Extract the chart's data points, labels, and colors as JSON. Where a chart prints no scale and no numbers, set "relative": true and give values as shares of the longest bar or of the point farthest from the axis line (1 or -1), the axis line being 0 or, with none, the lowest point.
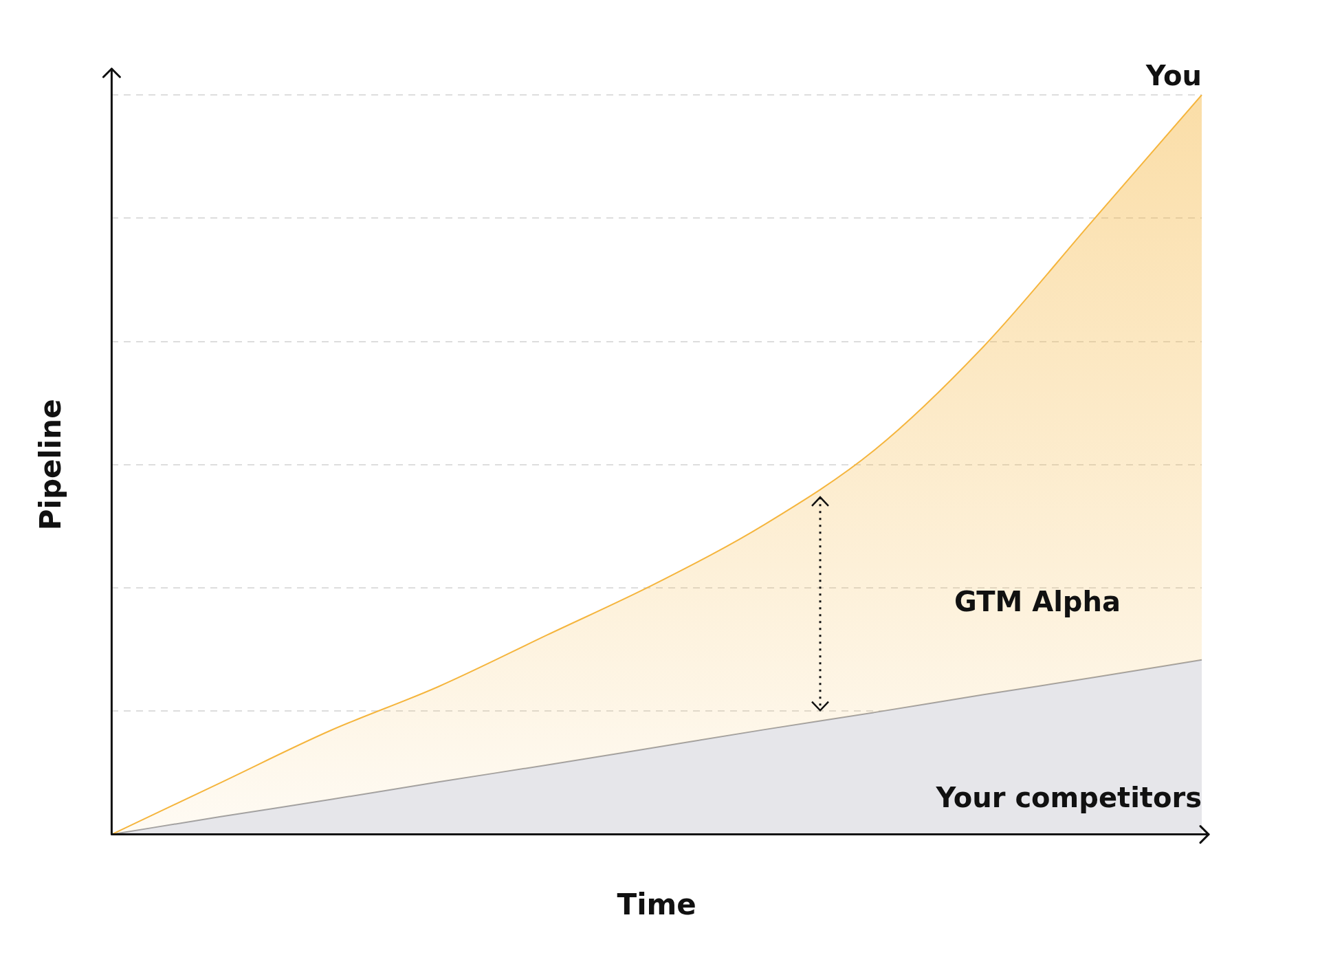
{
  "chart_data": {
    "type": "area",
    "relative": true,
    "xlabel": "Time",
    "ylabel": "Pipeline",
    "grid": "y",
    "legend": false,
    "categories": [
      null,
      null,
      null,
      null,
      null,
      null,
      null,
      null,
      null,
      null,
      null
    ],
    "series": [
      {
        "name": "You",
        "color": "#f5b53d",
        "values": [
          0,
          0.07,
          0.14,
          0.2,
          0.27,
          0.34,
          0.42,
          0.52,
          0.66,
          0.83,
          1
        ]
      },
      {
        "name": "Your competitors",
        "color": "#e6e6ea",
        "values": [
          0,
          0.024,
          0.047,
          0.071,
          0.094,
          0.118,
          0.142,
          0.165,
          0.189,
          0.212,
          0.236
        ]
      }
    ],
    "annotations": [
      "GTM Alpha"
    ]
  }
}
